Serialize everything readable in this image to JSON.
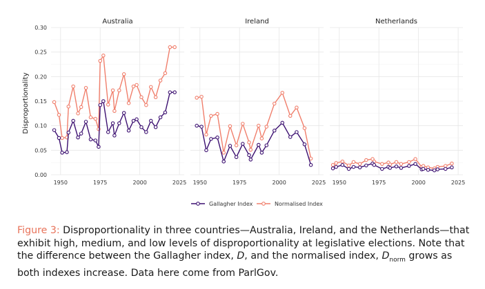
{
  "chart_data": {
    "type": "line",
    "ylabel": "Disproportionality",
    "ylim": [
      0,
      0.3
    ],
    "yticks": [
      0.0,
      0.05,
      0.1,
      0.15,
      0.2,
      0.25,
      0.3
    ],
    "ytick_labels": [
      "0.00",
      "0.05",
      "0.10",
      "0.15",
      "0.20",
      "0.25",
      "0.30"
    ],
    "xlim": [
      1944,
      2028
    ],
    "xticks": [
      1950,
      1975,
      2000,
      2025
    ],
    "xtick_labels": [
      "1950",
      "1975",
      "2000",
      "2025"
    ],
    "grid": true,
    "legend_position": "bottom",
    "colors": {
      "gallagher": "#3b0f70",
      "normalised": "#f07e6b"
    },
    "legend": [
      {
        "key": "gallagher",
        "label": "Gallagher Index"
      },
      {
        "key": "normalised",
        "label": "Normalised Index"
      }
    ],
    "panels": [
      {
        "title": "Australia",
        "series": [
          {
            "key": "gallagher",
            "name": "Gallagher Index",
            "x": [
              1946,
              1949,
              1951,
              1954,
              1955,
              1958,
              1961,
              1963,
              1966,
              1969,
              1972,
              1974,
              1975,
              1977,
              1980,
              1983,
              1984,
              1987,
              1990,
              1993,
              1996,
              1998,
              2001,
              2004,
              2007,
              2010,
              2013,
              2016,
              2019,
              2022
            ],
            "y": [
              0.091,
              0.075,
              0.045,
              0.046,
              0.086,
              0.11,
              0.076,
              0.084,
              0.108,
              0.072,
              0.07,
              0.057,
              0.142,
              0.15,
              0.087,
              0.105,
              0.08,
              0.105,
              0.126,
              0.09,
              0.11,
              0.113,
              0.097,
              0.087,
              0.11,
              0.097,
              0.117,
              0.127,
              0.168,
              0.168
            ]
          },
          {
            "key": "normalised",
            "name": "Normalised Index",
            "x": [
              1946,
              1949,
              1951,
              1954,
              1955,
              1958,
              1961,
              1963,
              1966,
              1969,
              1972,
              1974,
              1975,
              1977,
              1980,
              1983,
              1984,
              1987,
              1990,
              1993,
              1996,
              1998,
              2001,
              2004,
              2007,
              2010,
              2013,
              2016,
              2019,
              2022
            ],
            "y": [
              0.148,
              0.122,
              0.075,
              0.076,
              0.139,
              0.18,
              0.125,
              0.138,
              0.177,
              0.117,
              0.114,
              0.093,
              0.232,
              0.243,
              0.143,
              0.172,
              0.13,
              0.172,
              0.205,
              0.146,
              0.18,
              0.183,
              0.158,
              0.142,
              0.179,
              0.158,
              0.192,
              0.207,
              0.26,
              0.26
            ]
          }
        ]
      },
      {
        "title": "Ireland",
        "series": [
          {
            "key": "gallagher",
            "name": "Gallagher Index",
            "x": [
              1948,
              1951,
              1954,
              1957,
              1961,
              1965,
              1969,
              1973,
              1977,
              1981,
              1982,
              1987,
              1989,
              1992,
              1997,
              2002,
              2007,
              2011,
              2016,
              2020
            ],
            "y": [
              0.1,
              0.098,
              0.05,
              0.073,
              0.076,
              0.027,
              0.059,
              0.036,
              0.063,
              0.04,
              0.031,
              0.061,
              0.045,
              0.06,
              0.09,
              0.106,
              0.077,
              0.087,
              0.062,
              0.02
            ]
          },
          {
            "key": "normalised",
            "name": "Normalised Index",
            "x": [
              1948,
              1951,
              1954,
              1957,
              1961,
              1965,
              1969,
              1973,
              1977,
              1981,
              1982,
              1987,
              1989,
              1992,
              1997,
              2002,
              2007,
              2011,
              2016,
              2020
            ],
            "y": [
              0.157,
              0.159,
              0.082,
              0.12,
              0.124,
              0.045,
              0.099,
              0.06,
              0.104,
              0.066,
              0.051,
              0.1,
              0.074,
              0.098,
              0.145,
              0.167,
              0.12,
              0.137,
              0.095,
              0.033
            ]
          }
        ]
      },
      {
        "title": "Netherlands",
        "series": [
          {
            "key": "gallagher",
            "name": "Gallagher Index",
            "x": [
              1946,
              1948,
              1952,
              1956,
              1959,
              1963,
              1967,
              1971,
              1972,
              1977,
              1981,
              1982,
              1986,
              1989,
              1994,
              1998,
              2002,
              2003,
              2006,
              2010,
              2012,
              2017,
              2021
            ],
            "y": [
              0.013,
              0.016,
              0.02,
              0.012,
              0.016,
              0.015,
              0.019,
              0.023,
              0.02,
              0.012,
              0.016,
              0.014,
              0.017,
              0.014,
              0.018,
              0.022,
              0.011,
              0.012,
              0.01,
              0.009,
              0.011,
              0.012,
              0.015
            ]
          },
          {
            "key": "normalised",
            "name": "Normalised Index",
            "x": [
              1946,
              1948,
              1952,
              1956,
              1959,
              1963,
              1967,
              1971,
              1972,
              1977,
              1981,
              1982,
              1986,
              1989,
              1994,
              1998,
              2002,
              2003,
              2006,
              2010,
              2012,
              2017,
              2021
            ],
            "y": [
              0.02,
              0.024,
              0.027,
              0.019,
              0.026,
              0.022,
              0.03,
              0.032,
              0.027,
              0.022,
              0.025,
              0.021,
              0.026,
              0.022,
              0.026,
              0.032,
              0.016,
              0.018,
              0.015,
              0.013,
              0.016,
              0.018,
              0.023
            ]
          }
        ]
      }
    ]
  },
  "caption": {
    "label": "Figure 3:",
    "text1": "Disproportionality in three countries—Australia, Ireland, and the Netherlands—that exhibit high, medium, and low levels of disproportionality at legislative elections. Note that the difference between the Gallagher index, ",
    "sym_d": "D",
    "text2": ", and the normalised index, ",
    "sym_dn": "D",
    "sym_dn_sub": "norm",
    "text3": " grows as both indexes increase. Data here come from ParlGov."
  }
}
